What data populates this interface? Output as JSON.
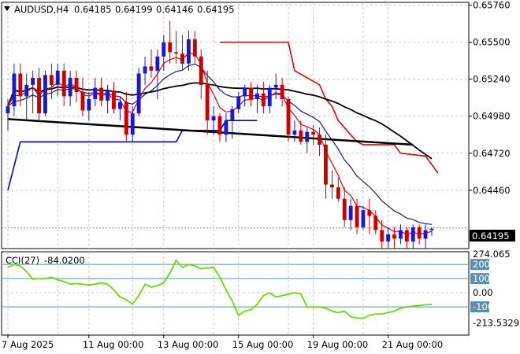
{
  "chart_data": [
    {
      "type": "candlestick",
      "title": "AUDUSD,H4",
      "ohlc_header": {
        "open": "0.64185",
        "high": "0.64199",
        "low": "0.64146",
        "close": "0.64195"
      },
      "ylim": [
        0.6405,
        0.6578
      ],
      "y_ticks": [
        "0.65760",
        "0.65500",
        "0.65240",
        "0.64980",
        "0.64720",
        "0.64460"
      ],
      "current_price": "0.64195",
      "x_labels": [
        "7 Aug 2025",
        "11 Aug 00:00",
        "13 Aug 00:00",
        "15 Aug 00:00",
        "19 Aug 00:00",
        "21 Aug 00:00"
      ],
      "grid": true,
      "colors": {
        "bull": "#1a1acc",
        "bear": "#cc0000",
        "fast_ma": "#dd0000",
        "slow_ma": "#1a1a6e",
        "long_ma": "#000000",
        "upper_trail": "#ee0000",
        "lower_trail": "#0000ee",
        "trendline": "#000000"
      },
      "candles": [
        [
          0.65,
          0.651,
          0.6488,
          0.6505
        ],
        [
          0.6505,
          0.6535,
          0.6498,
          0.6528
        ],
        [
          0.6528,
          0.6535,
          0.6505,
          0.6512
        ],
        [
          0.6512,
          0.6528,
          0.6495,
          0.652
        ],
        [
          0.652,
          0.653,
          0.65,
          0.6525
        ],
        [
          0.6525,
          0.6532,
          0.6495,
          0.65
        ],
        [
          0.65,
          0.653,
          0.6498,
          0.6527
        ],
        [
          0.6527,
          0.6535,
          0.651,
          0.652
        ],
        [
          0.652,
          0.6535,
          0.6512,
          0.653
        ],
        [
          0.653,
          0.6535,
          0.6505,
          0.6512
        ],
        [
          0.6512,
          0.653,
          0.6505,
          0.6525
        ],
        [
          0.6525,
          0.653,
          0.6508,
          0.6515
        ],
        [
          0.6515,
          0.6525,
          0.6498,
          0.6502
        ],
        [
          0.6502,
          0.6515,
          0.6495,
          0.651
        ],
        [
          0.651,
          0.6525,
          0.6505,
          0.6518
        ],
        [
          0.6518,
          0.6525,
          0.6505,
          0.6509
        ],
        [
          0.6509,
          0.652,
          0.65,
          0.6516
        ],
        [
          0.6516,
          0.6522,
          0.65,
          0.6503
        ],
        [
          0.6503,
          0.6512,
          0.6495,
          0.6508
        ],
        [
          0.6508,
          0.6515,
          0.648,
          0.6485
        ],
        [
          0.6485,
          0.6505,
          0.648,
          0.65
        ],
        [
          0.65,
          0.6532,
          0.6498,
          0.6528
        ],
        [
          0.6528,
          0.654,
          0.652,
          0.6533
        ],
        [
          0.6533,
          0.6545,
          0.6525,
          0.653
        ],
        [
          0.653,
          0.6545,
          0.651,
          0.654
        ],
        [
          0.654,
          0.6555,
          0.653,
          0.655
        ],
        [
          0.655,
          0.6565,
          0.6535,
          0.6543
        ],
        [
          0.6543,
          0.6558,
          0.6535,
          0.6542
        ],
        [
          0.6542,
          0.6555,
          0.653,
          0.6535
        ],
        [
          0.6535,
          0.6558,
          0.653,
          0.6552
        ],
        [
          0.6552,
          0.6558,
          0.6535,
          0.654
        ],
        [
          0.654,
          0.6545,
          0.651,
          0.652
        ],
        [
          0.652,
          0.653,
          0.6485,
          0.6495
        ],
        [
          0.6495,
          0.6505,
          0.6485,
          0.6498
        ],
        [
          0.6498,
          0.65,
          0.648,
          0.6485
        ],
        [
          0.6485,
          0.65,
          0.648,
          0.6495
        ],
        [
          0.6495,
          0.6505,
          0.6482,
          0.6503
        ],
        [
          0.6503,
          0.6515,
          0.65,
          0.6512
        ],
        [
          0.6512,
          0.652,
          0.6505,
          0.6518
        ],
        [
          0.6518,
          0.6522,
          0.6505,
          0.651
        ],
        [
          0.651,
          0.652,
          0.65,
          0.6514
        ],
        [
          0.6514,
          0.6522,
          0.65,
          0.6505
        ],
        [
          0.6505,
          0.652,
          0.65,
          0.6518
        ],
        [
          0.6518,
          0.6528,
          0.651,
          0.652
        ],
        [
          0.652,
          0.6525,
          0.6505,
          0.651
        ],
        [
          0.651,
          0.6512,
          0.648,
          0.6485
        ],
        [
          0.6485,
          0.6495,
          0.648,
          0.6488
        ],
        [
          0.6488,
          0.6495,
          0.6478,
          0.648
        ],
        [
          0.648,
          0.649,
          0.6472,
          0.6487
        ],
        [
          0.6487,
          0.6492,
          0.6478,
          0.6485
        ],
        [
          0.6485,
          0.649,
          0.647,
          0.6478
        ],
        [
          0.6478,
          0.6485,
          0.644,
          0.645
        ],
        [
          0.645,
          0.646,
          0.644,
          0.6448
        ],
        [
          0.6448,
          0.6455,
          0.6438,
          0.644
        ],
        [
          0.644,
          0.6448,
          0.642,
          0.6425
        ],
        [
          0.6425,
          0.644,
          0.6418,
          0.6435
        ],
        [
          0.6435,
          0.644,
          0.6415,
          0.642
        ],
        [
          0.642,
          0.6435,
          0.6418,
          0.6432
        ],
        [
          0.6432,
          0.644,
          0.6415,
          0.6428
        ],
        [
          0.6428,
          0.6432,
          0.6415,
          0.6418
        ],
        [
          0.6418,
          0.6425,
          0.6405,
          0.641
        ],
        [
          0.641,
          0.642,
          0.6405,
          0.6415
        ],
        [
          0.6415,
          0.642,
          0.6405,
          0.6412
        ],
        [
          0.6412,
          0.6422,
          0.6408,
          0.6418
        ],
        [
          0.6418,
          0.642,
          0.6405,
          0.641
        ],
        [
          0.641,
          0.6422,
          0.6405,
          0.642
        ],
        [
          0.642,
          0.6422,
          0.6408,
          0.6412
        ],
        [
          0.6412,
          0.6422,
          0.6405,
          0.6418
        ],
        [
          0.6418,
          0.642,
          0.6414,
          0.6419
        ]
      ],
      "upper_trail_steps": [
        [
          34,
          0.655
        ],
        [
          45,
          0.655
        ],
        [
          46,
          0.653
        ],
        [
          50,
          0.652
        ],
        [
          51,
          0.651
        ],
        [
          52,
          0.6505
        ],
        [
          53,
          0.6495
        ],
        [
          55,
          0.6485
        ],
        [
          56,
          0.648
        ],
        [
          57,
          0.6478
        ],
        [
          62,
          0.6478
        ],
        [
          63,
          0.6472
        ],
        [
          67,
          0.647
        ],
        [
          69,
          0.6458
        ]
      ],
      "lower_trail_steps": [
        [
          0,
          0.6446
        ],
        [
          2,
          0.648
        ],
        [
          27,
          0.648
        ],
        [
          28,
          0.6488
        ],
        [
          34,
          0.6488
        ],
        [
          35,
          0.6495
        ],
        [
          40,
          0.6495
        ]
      ],
      "trendline": {
        "from": [
          0,
          0.6496
        ],
        "to": [
          65,
          0.6478
        ]
      }
    },
    {
      "type": "line",
      "title": "CCI(27)",
      "value": "-84.0200",
      "ylim": [
        -300,
        290
      ],
      "y_ticks": [
        "274.065",
        "200",
        "100",
        "0.00",
        "-100",
        "-213.5329"
      ],
      "levels": [
        200,
        100,
        -100
      ],
      "color": "#66dd00",
      "values": [
        180,
        200,
        190,
        150,
        95,
        100,
        100,
        110,
        90,
        80,
        60,
        65,
        60,
        55,
        60,
        70,
        60,
        20,
        -30,
        -50,
        -80,
        -20,
        60,
        40,
        50,
        70,
        140,
        230,
        180,
        200,
        190,
        170,
        175,
        180,
        110,
        20,
        -60,
        -160,
        -130,
        -120,
        -80,
        -20,
        0,
        -30,
        -20,
        -10,
        0,
        -10,
        -100,
        -100,
        -100,
        -110,
        -130,
        -140,
        -130,
        -170,
        -180,
        -180,
        -160,
        -150,
        -150,
        -140,
        -130,
        -110,
        -100,
        -95,
        -90,
        -85,
        -84
      ]
    }
  ]
}
